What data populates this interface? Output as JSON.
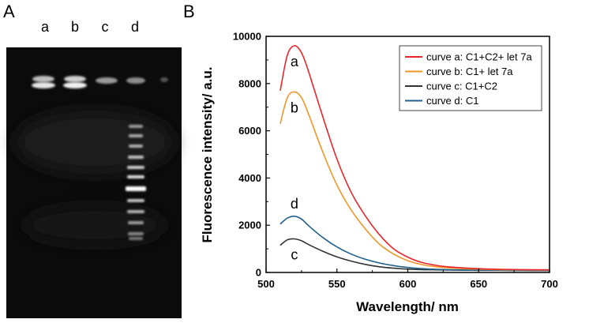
{
  "panel_a": {
    "label": "A",
    "lanes": [
      "a",
      "b",
      "c",
      "d"
    ]
  },
  "panel_b": {
    "label": "B"
  },
  "chart_data": {
    "type": "line",
    "title": "",
    "xlabel": "Wavelength/ nm",
    "ylabel": "Fluorescence intensity/ a.u.",
    "xlim": [
      500,
      700
    ],
    "ylim": [
      0,
      10000
    ],
    "xticks": [
      500,
      550,
      600,
      650,
      700
    ],
    "yticks": [
      0,
      2000,
      4000,
      6000,
      8000,
      10000
    ],
    "x": [
      510,
      515,
      520,
      525,
      530,
      540,
      550,
      560,
      570,
      580,
      590,
      600,
      610,
      620,
      630,
      640,
      650,
      660,
      680,
      700
    ],
    "series": [
      {
        "name": "curve a: C1+C2+ let 7a",
        "letter": "a",
        "color": "#e8262a",
        "values": [
          7700,
          9200,
          9600,
          9300,
          8500,
          6600,
          4800,
          3400,
          2400,
          1600,
          1000,
          650,
          420,
          300,
          230,
          190,
          160,
          140,
          120,
          110
        ]
      },
      {
        "name": "curve b: C1+ let 7a",
        "letter": "b",
        "color": "#f0962a",
        "values": [
          6300,
          7400,
          7650,
          7400,
          6700,
          5100,
          3700,
          2650,
          1850,
          1200,
          780,
          500,
          330,
          240,
          190,
          160,
          140,
          125,
          110,
          100
        ]
      },
      {
        "name": "curve c: C1+C2",
        "letter": "c",
        "color": "#333333",
        "values": [
          1150,
          1380,
          1420,
          1340,
          1180,
          900,
          660,
          480,
          340,
          240,
          180,
          140,
          120,
          110,
          100,
          95,
          90,
          90,
          85,
          80
        ]
      },
      {
        "name": "curve d: C1",
        "letter": "d",
        "color": "#1f5f8b",
        "values": [
          2050,
          2300,
          2380,
          2260,
          1980,
          1480,
          1080,
          780,
          560,
          400,
          290,
          210,
          160,
          130,
          115,
          105,
          100,
          95,
          90,
          85
        ]
      }
    ],
    "legend_position": "top-right",
    "grid": false
  }
}
